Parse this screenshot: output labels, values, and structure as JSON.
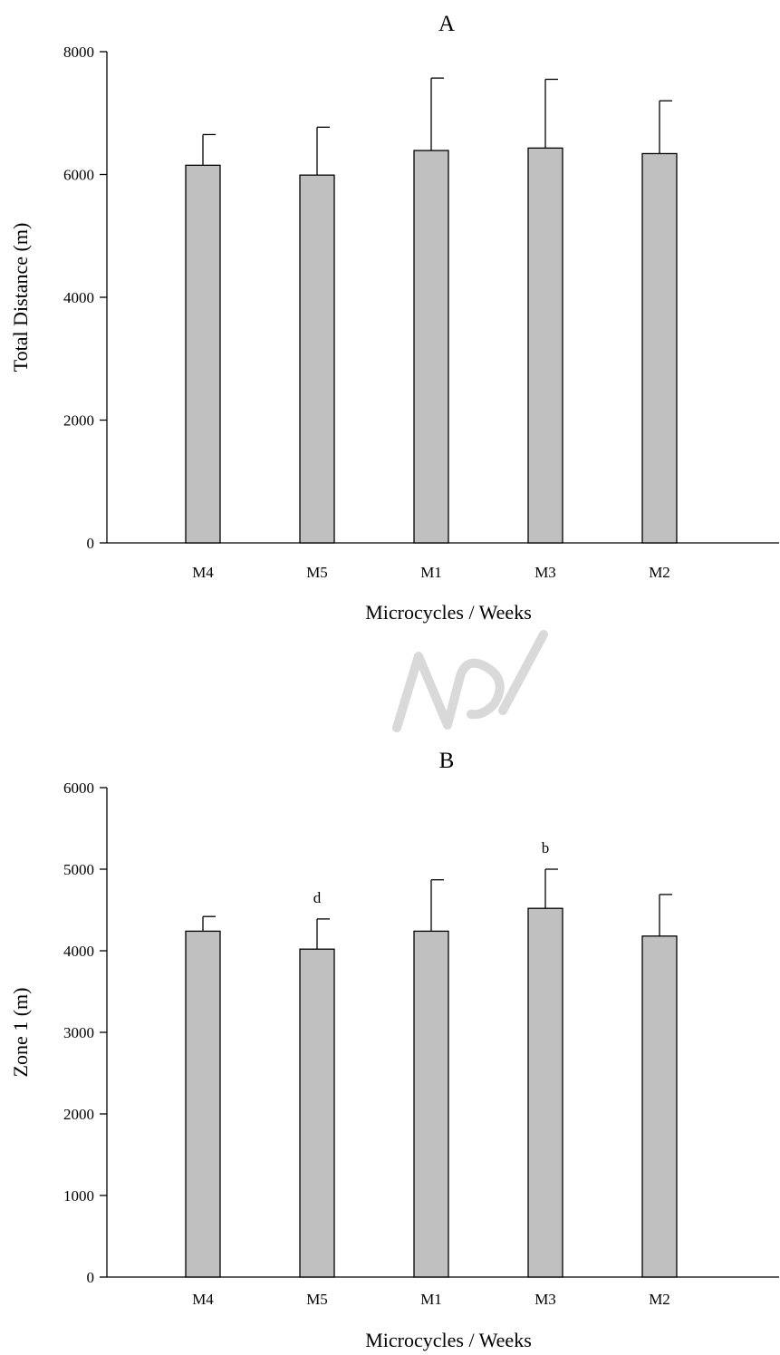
{
  "colors": {
    "bar_fill": "#c0c0c0",
    "bar_stroke": "#000000",
    "axis": "#000000",
    "background": "#ffffff"
  },
  "chart_data": [
    {
      "type": "bar",
      "title": "A",
      "xlabel": "Microcycles / Weeks",
      "ylabel": "Total Distance (m)",
      "categories": [
        "M4",
        "M5",
        "M1",
        "M3",
        "M2"
      ],
      "values": [
        6150,
        5990,
        6390,
        6430,
        6340
      ],
      "error_upper": [
        6650,
        6770,
        7570,
        7550,
        7200
      ],
      "annotations": [
        "",
        "",
        "",
        "",
        ""
      ],
      "ylim": [
        0,
        8000
      ],
      "yticks": [
        0,
        2000,
        4000,
        6000,
        8000
      ],
      "grid": false,
      "legend": "none"
    },
    {
      "type": "bar",
      "title": "B",
      "xlabel": "Microcycles / Weeks",
      "ylabel": "Zone 1 (m)",
      "categories": [
        "M4",
        "M5",
        "M1",
        "M3",
        "M2"
      ],
      "values": [
        4240,
        4020,
        4240,
        4520,
        4180
      ],
      "error_upper": [
        4420,
        4390,
        4870,
        5000,
        4690
      ],
      "annotations": [
        "",
        "d",
        "",
        "b",
        ""
      ],
      "ylim": [
        0,
        6000
      ],
      "yticks": [
        0,
        1000,
        2000,
        3000,
        4000,
        5000,
        6000
      ],
      "grid": false,
      "legend": "none"
    }
  ]
}
